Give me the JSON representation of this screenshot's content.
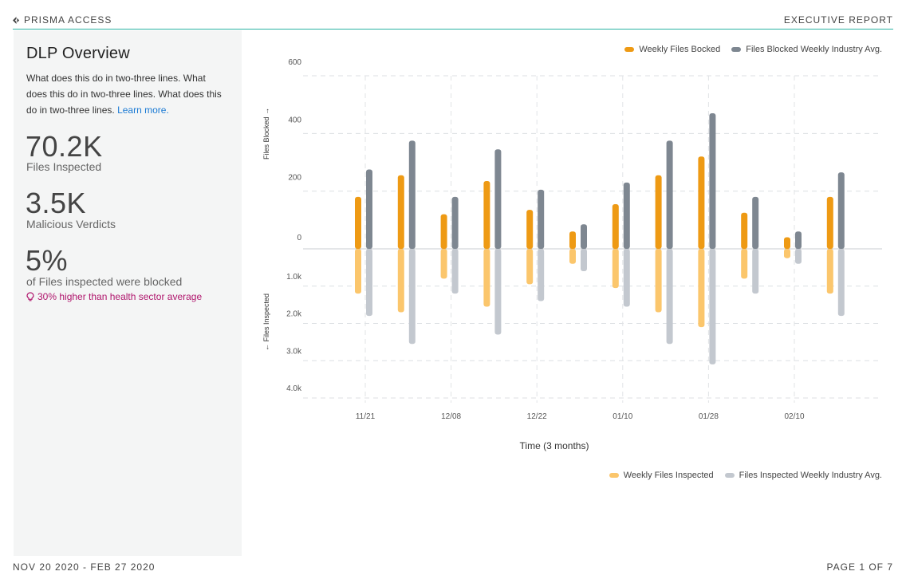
{
  "header": {
    "brand": "PRISMA ACCESS",
    "report_title": "EXECUTIVE REPORT"
  },
  "panel": {
    "title": "DLP Overview",
    "description": "What does this do in two-three lines. What does this do in two-three lines. What does this do in two-three lines.",
    "learn_more": "Learn more.",
    "stats": [
      {
        "value": "70.2K",
        "label": "Files Inspected"
      },
      {
        "value": "3.5K",
        "label": "Malicious Verdicts"
      },
      {
        "value": "5%",
        "label": "of Files inspected were blocked"
      }
    ],
    "hint": "30% higher than health sector average",
    "hint_icon": "lightbulb-icon"
  },
  "footer": {
    "date_range": "NOV 20 2020 - FEB 27 2020",
    "page": "PAGE 1 OF 7"
  },
  "colors": {
    "brand_line": "#2bb3a3",
    "blocked": "#ee9a14",
    "blocked_avg": "#7e8791",
    "inspected": "#fbc66c",
    "inspected_avg": "#c3c8cf",
    "hint": "#b0166d",
    "link": "#1a7ad4"
  },
  "chart_data": {
    "type": "bar",
    "xlabel": "Time (3 months)",
    "top_axis": {
      "label": "Files Blocked →",
      "ticks": [
        0,
        200,
        400,
        600
      ],
      "tick_labels": [
        "0",
        "200",
        "400",
        "600"
      ],
      "ylim": [
        0,
        600
      ]
    },
    "bottom_axis": {
      "label": "← Files Inspected",
      "ticks": [
        1000,
        2000,
        3000,
        4000
      ],
      "tick_labels": [
        "1.0k",
        "2.0k",
        "3.0k",
        "4.0k"
      ],
      "ylim": [
        0,
        4000
      ]
    },
    "x_tick_labels": [
      {
        "label": "11/21",
        "index": 0
      },
      {
        "label": "12/08",
        "index": 2
      },
      {
        "label": "12/22",
        "index": 4
      },
      {
        "label": "01/10",
        "index": 6
      },
      {
        "label": "01/28",
        "index": 8
      },
      {
        "label": "02/10",
        "index": 10
      }
    ],
    "top_legend": [
      "Weekly Files Bocked",
      "Files Blocked Weekly Industry Avg."
    ],
    "bottom_legend": [
      "Weekly Files Inspected",
      "Files Inspected Weekly Industry Avg."
    ],
    "weeks": 12,
    "series_blocked": [
      {
        "name": "Weekly Files Bocked",
        "values": [
          180,
          255,
          120,
          235,
          135,
          60,
          155,
          255,
          320,
          125,
          40,
          180
        ]
      },
      {
        "name": "Files Blocked Weekly Industry Avg.",
        "values": [
          275,
          375,
          180,
          345,
          205,
          85,
          230,
          375,
          470,
          180,
          60,
          265
        ]
      }
    ],
    "series_inspected": [
      {
        "name": "Weekly Files Inspected",
        "values": [
          1200,
          1700,
          800,
          1550,
          950,
          400,
          1050,
          1700,
          2100,
          800,
          250,
          1200
        ]
      },
      {
        "name": "Files Inspected Weekly Industry Avg.",
        "values": [
          1800,
          2550,
          1200,
          2300,
          1400,
          600,
          1550,
          2550,
          3100,
          1200,
          400,
          1800
        ]
      }
    ]
  }
}
